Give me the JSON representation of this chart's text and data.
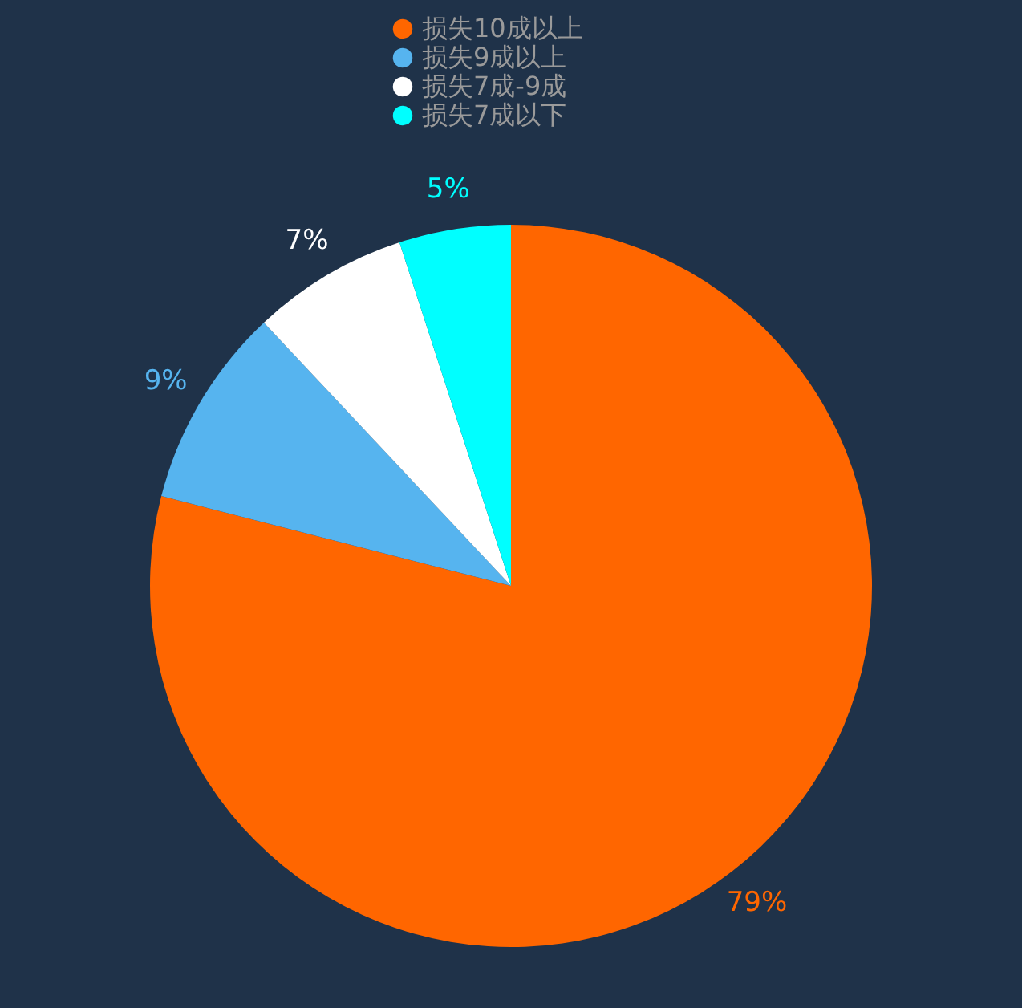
{
  "chart_data": {
    "type": "pie",
    "categories": [
      "损失10成以上",
      "损失9成以上",
      "损失7成-9成",
      "损失7成以下"
    ],
    "values": [
      79,
      9,
      7,
      5
    ],
    "colors": [
      "#ff6600",
      "#56b4ef",
      "#ffffff",
      "#00ffff"
    ],
    "value_labels": [
      "79%",
      "9%",
      "7%",
      "5%"
    ],
    "legend": "top"
  }
}
